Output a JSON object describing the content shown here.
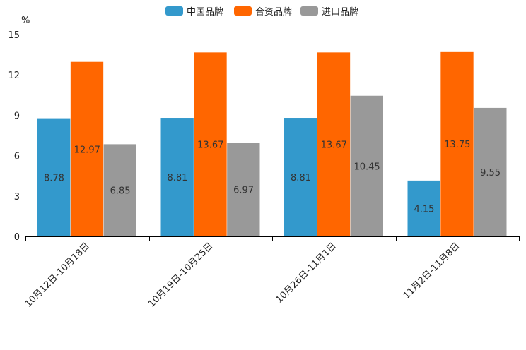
{
  "chart_data": {
    "type": "bar",
    "title": "",
    "xlabel": "",
    "ylabel": "%",
    "ylim": [
      0,
      15
    ],
    "yticks": [
      0,
      3,
      6,
      9,
      12,
      15
    ],
    "categories": [
      "10月12日-10月18日",
      "10月19日-10月25日",
      "10月26日-11月1日",
      "11月2日-11月8日"
    ],
    "series": [
      {
        "name": "中国品牌",
        "color": "#3399cc",
        "values": [
          8.78,
          8.81,
          8.81,
          4.15
        ]
      },
      {
        "name": "合资品牌",
        "color": "#ff6600",
        "values": [
          12.97,
          13.67,
          13.67,
          13.75
        ]
      },
      {
        "name": "进口品牌",
        "color": "#999999",
        "values": [
          6.85,
          6.97,
          10.45,
          9.55
        ]
      }
    ],
    "legend_position": "top-center",
    "grid": false
  }
}
